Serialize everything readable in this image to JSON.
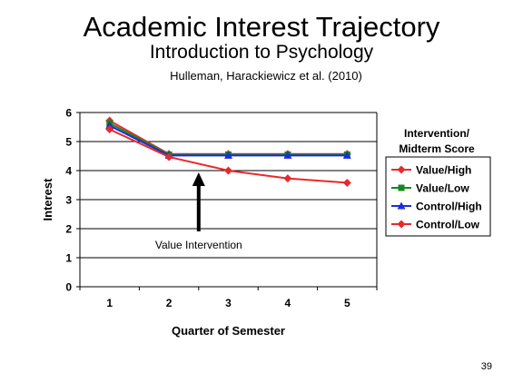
{
  "slide": {
    "title": "Academic Interest Trajectory",
    "subtitle": "Introduction to Psychology",
    "credit": "Hulleman, Harackiewicz et al. (2010)",
    "page_number": "39"
  },
  "chart_data": {
    "type": "line",
    "xlabel": "Quarter of Semester",
    "ylabel": "Interest",
    "categories": [
      "1",
      "2",
      "3",
      "4",
      "5"
    ],
    "ylim": [
      0,
      6
    ],
    "yticks": [
      "0",
      "1",
      "2",
      "3",
      "4",
      "5",
      "6"
    ],
    "grid": true,
    "legend_title": [
      "Intervention/",
      "Midterm Score"
    ],
    "legend_placement": "right",
    "annotation": "Value Intervention",
    "series": [
      {
        "name": "Value/High",
        "values": [
          5.72,
          4.57,
          4.57,
          4.57,
          4.57
        ],
        "color": "#E8292C",
        "marker": "diamond"
      },
      {
        "name": "Value/Low",
        "values": [
          5.63,
          4.55,
          4.55,
          4.55,
          4.55
        ],
        "color": "#118A1E",
        "marker": "square"
      },
      {
        "name": "Control/High",
        "values": [
          5.55,
          4.52,
          4.52,
          4.52,
          4.52
        ],
        "color": "#1C2BE0",
        "marker": "triangle"
      },
      {
        "name": "Control/Low",
        "values": [
          5.42,
          4.47,
          4.0,
          3.73,
          3.58
        ],
        "color": "#E8292C",
        "marker": "diamond"
      }
    ]
  }
}
